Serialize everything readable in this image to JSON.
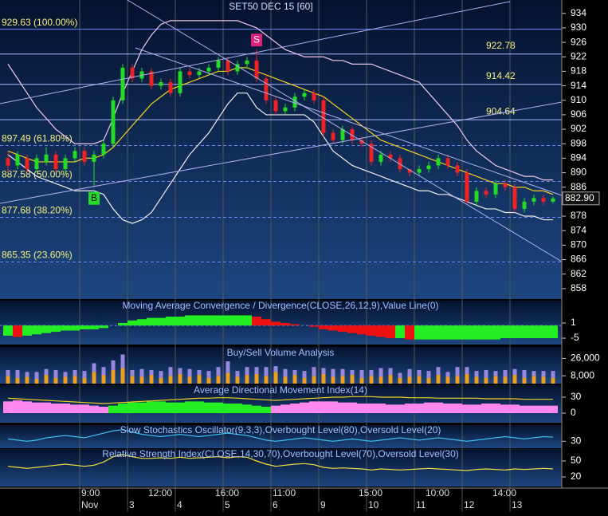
{
  "chart_data": [
    {
      "type": "candlestick",
      "title": "SET50 DEC 15   [60]",
      "categories": [
        null,
        null,
        null,
        null,
        null,
        null,
        null,
        null,
        "9:00",
        null,
        null,
        null,
        null,
        null,
        null,
        "12:00",
        null,
        null,
        null,
        null,
        null,
        null,
        "16:00",
        null,
        null,
        null,
        null,
        null,
        "11:00",
        null,
        null,
        null,
        null,
        null,
        null,
        null,
        null,
        "15:00",
        null,
        null,
        null,
        null,
        null,
        null,
        "10:00",
        null,
        null,
        null,
        null,
        null,
        null,
        "14:00",
        null,
        null,
        null,
        null,
        null,
        null
      ],
      "dates": [
        null,
        null,
        null,
        null,
        null,
        null,
        null,
        null,
        "Nov",
        null,
        null,
        null,
        null,
        "3",
        null,
        null,
        null,
        null,
        "4",
        null,
        null,
        null,
        null,
        "5",
        null,
        null,
        null,
        null,
        "6",
        null,
        null,
        null,
        null,
        "9",
        null,
        null,
        null,
        null,
        "10",
        null,
        null,
        null,
        null,
        "11",
        null,
        null,
        null,
        null,
        "12",
        null,
        null,
        null,
        null,
        "13",
        null,
        null,
        null,
        null
      ],
      "open": [
        894,
        892,
        894,
        891,
        893,
        895,
        891,
        894,
        896,
        893,
        895,
        898,
        910,
        919,
        916,
        918,
        914,
        915,
        912,
        918,
        917,
        918,
        919,
        921,
        918,
        920,
        921,
        916,
        910,
        907,
        908,
        911,
        912,
        910,
        901,
        899,
        902,
        899,
        898,
        893,
        895,
        894,
        891,
        890,
        891,
        892,
        894,
        892,
        890,
        882,
        885,
        884,
        887,
        886,
        880,
        882,
        883,
        882
      ],
      "high": [
        896,
        896,
        895,
        895,
        897,
        896,
        895,
        897,
        897,
        896,
        899,
        911,
        920,
        920,
        919,
        919,
        916,
        916,
        919,
        919,
        919,
        920,
        922,
        922,
        921,
        922,
        924,
        917,
        911,
        909,
        912,
        913,
        913,
        911,
        902,
        903,
        903,
        900,
        899,
        896,
        896,
        895,
        891,
        892,
        893,
        895,
        895,
        893,
        891,
        886,
        886,
        888,
        888,
        887,
        883,
        884,
        884,
        883.5
      ],
      "low": [
        890,
        891,
        890,
        890,
        892,
        890,
        890,
        893,
        892,
        886,
        894,
        897,
        909,
        915,
        915,
        913,
        913,
        911,
        911,
        916,
        916,
        917,
        918,
        917,
        917,
        919,
        915,
        909,
        906,
        906,
        907,
        910,
        909,
        900,
        898,
        898,
        898,
        897,
        892,
        892,
        893,
        890,
        889,
        889,
        890,
        891,
        891,
        889,
        881,
        881,
        883,
        883,
        885,
        879,
        879,
        881,
        881,
        881.5
      ],
      "close": [
        892,
        895,
        891,
        894,
        895,
        891,
        894,
        896,
        893,
        895,
        898,
        910,
        919,
        916,
        918,
        914,
        915,
        912,
        918,
        917,
        918,
        919,
        921,
        918,
        920,
        921,
        916,
        910,
        907,
        908,
        911,
        912,
        910,
        901,
        899,
        902,
        899,
        898,
        893,
        895,
        894,
        891,
        890,
        891,
        892,
        894,
        892,
        890,
        882,
        885,
        884,
        887,
        886,
        880,
        882,
        883,
        882,
        882.9
      ],
      "signals": [
        null,
        null,
        null,
        null,
        null,
        null,
        null,
        null,
        null,
        "B",
        null,
        null,
        null,
        null,
        null,
        null,
        null,
        null,
        null,
        null,
        null,
        null,
        null,
        null,
        null,
        null,
        "S",
        null,
        null,
        null,
        null,
        null,
        null,
        null,
        null,
        null,
        null,
        null,
        null,
        null,
        null,
        null,
        null,
        null,
        null,
        null,
        null,
        null,
        null,
        null,
        null,
        null,
        null,
        null,
        null,
        null,
        null,
        null
      ],
      "up_color": "#22dd22",
      "down_color": "#ee2222",
      "overlays": [
        {
          "color": "#f0c8e8",
          "values": [
            920,
            916,
            912,
            908,
            905,
            902,
            900,
            898,
            898,
            898,
            899,
            905,
            912,
            918,
            924,
            928,
            931,
            932,
            932,
            932,
            932,
            932,
            932,
            932,
            932,
            931,
            930,
            928,
            926,
            924,
            923,
            922,
            922,
            922,
            921,
            921,
            920,
            920,
            920,
            919,
            918,
            917,
            916,
            915,
            912,
            909,
            906,
            903,
            899,
            896,
            894,
            892,
            891,
            890,
            889,
            889,
            888,
            888
          ]
        },
        {
          "color": "#f0f0f0",
          "values": [
            895,
            893,
            891,
            889,
            888,
            887,
            886,
            885,
            885,
            885,
            884,
            880,
            877,
            876,
            877,
            879,
            883,
            887,
            891,
            895,
            898,
            901,
            905,
            909,
            912,
            912,
            908,
            906,
            906,
            906,
            906,
            906,
            904,
            900,
            896,
            894,
            892,
            891,
            890,
            889,
            888,
            887,
            886,
            885,
            885,
            884,
            884,
            883,
            882,
            881,
            880,
            880,
            879,
            879,
            878,
            878,
            877,
            877
          ]
        },
        {
          "color": "#f5d020",
          "values": [
            896,
            895,
            894,
            893,
            893,
            893,
            893,
            893,
            894,
            894,
            895,
            897,
            900,
            903,
            906,
            909,
            911,
            913,
            914,
            915,
            916,
            917,
            918,
            918,
            919,
            919,
            918,
            917,
            916,
            915,
            914,
            913,
            912,
            911,
            909,
            907,
            905,
            903,
            901,
            899,
            898,
            897,
            896,
            895,
            894,
            893,
            892,
            891,
            890,
            889,
            888,
            887,
            887,
            886,
            886,
            885,
            885,
            884
          ]
        }
      ],
      "levels": [
        {
          "value": 929.63,
          "label": "929.63 (100.00%)"
        },
        {
          "value": 897.49,
          "label": "897.49 (61.80%)"
        },
        {
          "value": 887.58,
          "label": "887.58 (50.00%)"
        },
        {
          "value": 877.68,
          "label": "877.68 (38.20%)"
        },
        {
          "value": 865.35,
          "label": "865.35 (23.60%)"
        }
      ],
      "price_lines": [
        922.78,
        914.42,
        904.64
      ],
      "last": {
        "value": 882.9,
        "label": "882.90"
      },
      "ylim": [
        855.1,
        937.7
      ],
      "yticks": [
        934,
        930,
        926,
        922,
        918,
        914,
        910,
        906,
        902,
        898,
        894,
        890,
        886,
        878,
        874,
        870,
        866,
        862,
        858
      ]
    },
    {
      "type": "bar",
      "title": "Moving Average Convergence / Divergence(CLOSE,26,12,9),Value Line(0)",
      "values": [
        -4,
        -4.5,
        -4,
        -3.5,
        -3,
        -2.5,
        -2,
        -2,
        -1.5,
        -1.5,
        -1,
        0,
        1,
        2,
        2.5,
        3,
        3,
        3.5,
        3.5,
        4,
        4,
        4,
        4,
        4,
        4,
        4,
        3.5,
        2.5,
        1.5,
        1,
        0.5,
        0,
        -0.5,
        -1.5,
        -2,
        -2.5,
        -3,
        -3.5,
        -4,
        -4.5,
        -5,
        -5,
        -5.5,
        -5.5,
        -5.5,
        -5.5,
        -5.5,
        -5.5,
        -5.5,
        -5.5,
        -5.5,
        -5.5,
        -5,
        -5,
        -5,
        -5,
        -5,
        -5
      ],
      "up_color": "#22ee22",
      "down_color": "#ee1111",
      "ylim": [
        -7.5,
        9.8
      ],
      "yticks": [
        1,
        -5
      ]
    },
    {
      "type": "stacked-bar",
      "title": "Buy/Sell Volume Analysis",
      "series": [
        {
          "color": "#f0a020",
          "values": [
            8000,
            6000,
            7000,
            5000,
            9000,
            6000,
            7000,
            8000,
            6000,
            12000,
            9000,
            14000,
            16000,
            8000,
            7000,
            9000,
            6000,
            8000,
            10000,
            7000,
            9000,
            6000,
            8000,
            11000,
            7000,
            9000,
            10000,
            8000,
            12000,
            7000,
            9000,
            6000,
            8000,
            10000,
            7000,
            8000,
            9000,
            6000,
            8000,
            7000,
            9000,
            6000,
            7000,
            8000,
            6000,
            9000,
            7000,
            8000,
            10000,
            7000,
            6000,
            8000,
            7000,
            9000,
            6000,
            8000,
            7000,
            6000
          ]
        },
        {
          "color": "#9a88e0",
          "values": [
            6000,
            8000,
            5000,
            7000,
            6000,
            8000,
            5000,
            6000,
            7000,
            9000,
            8000,
            10000,
            14000,
            6000,
            8000,
            5000,
            7000,
            9000,
            6000,
            8000,
            5000,
            7000,
            9000,
            12000,
            6000,
            8000,
            7000,
            9000,
            6000,
            8000,
            5000,
            7000,
            9000,
            6000,
            8000,
            7000,
            5000,
            8000,
            6000,
            9000,
            7000,
            5000,
            8000,
            6000,
            7000,
            8000,
            5000,
            9000,
            7000,
            6000,
            8000,
            5000,
            7000,
            6000,
            8000,
            5000,
            6000,
            7000
          ]
        }
      ],
      "ylim": [
        0,
        37000
      ],
      "yticks": [
        {
          "value": 26000,
          "label": "26,000"
        },
        {
          "value": 8000,
          "label": "8,000"
        }
      ]
    },
    {
      "type": "bar-line",
      "title": "Average Directional Movement Index(14)",
      "series": [
        {
          "color": "#ff88ee",
          "values": [
            22,
            24,
            22,
            20,
            20,
            18,
            18,
            16,
            16,
            14,
            12,
            null,
            null,
            null,
            null,
            null,
            null,
            null,
            null,
            null,
            null,
            null,
            null,
            null,
            null,
            null,
            null,
            null,
            14,
            16,
            18,
            20,
            22,
            22,
            22,
            20,
            20,
            18,
            18,
            18,
            16,
            16,
            18,
            18,
            20,
            20,
            18,
            18,
            16,
            16,
            18,
            18,
            16,
            16,
            14,
            14,
            14,
            14
          ]
        },
        {
          "color": "#22ee22",
          "values": [
            null,
            null,
            null,
            null,
            null,
            null,
            null,
            null,
            null,
            null,
            null,
            14,
            18,
            20,
            20,
            22,
            22,
            20,
            20,
            22,
            22,
            20,
            20,
            18,
            18,
            16,
            14,
            12,
            null,
            null,
            null,
            null,
            null,
            null,
            null,
            null,
            null,
            null,
            null,
            null,
            null,
            null,
            null,
            null,
            null,
            null,
            null,
            null,
            null,
            null,
            null,
            null,
            null,
            null,
            null,
            null,
            null,
            null
          ]
        }
      ],
      "line": {
        "color": "#f5d020",
        "values": [
          28,
          27,
          26,
          25,
          24,
          23,
          22,
          21,
          20,
          19,
          18,
          19,
          20,
          21,
          22,
          23,
          24,
          25,
          26,
          27,
          28,
          28,
          29,
          29,
          28,
          27,
          26,
          25,
          24,
          25,
          26,
          27,
          28,
          29,
          30,
          30,
          31,
          31,
          31,
          30,
          30,
          30,
          29,
          29,
          29,
          28,
          28,
          28,
          28,
          28,
          27,
          27,
          27,
          27,
          26,
          26,
          26,
          26
        ]
      },
      "ylim": [
        -18,
        52.5
      ],
      "yticks": [
        30,
        0
      ]
    },
    {
      "type": "line",
      "title": "Slow Stochastics Oscillator(9,3,3),Overbought Level(80),Oversold Level(20)",
      "series": [
        {
          "color": "#40c0f0",
          "values": [
            40,
            35,
            30,
            35,
            45,
            50,
            55,
            50,
            45,
            55,
            65,
            75,
            80,
            70,
            60,
            55,
            50,
            55,
            60,
            55,
            50,
            55,
            60,
            65,
            60,
            55,
            45,
            35,
            30,
            35,
            40,
            45,
            40,
            35,
            30,
            35,
            40,
            35,
            30,
            35,
            40,
            45,
            40,
            35,
            40,
            45,
            40,
            35,
            30,
            35,
            40,
            45,
            50,
            45,
            40,
            45,
            50,
            48
          ]
        }
      ],
      "ylim": [
        0,
        100
      ],
      "yticks": [
        30
      ]
    },
    {
      "type": "line",
      "title": "Relative Strength Index(CLOSE,14,30,70),Overbought Level(70),Oversold Level(30)",
      "series": [
        {
          "color": "#f5e040",
          "values": [
            40,
            38,
            36,
            38,
            40,
            42,
            44,
            42,
            40,
            42,
            48,
            58,
            62,
            58,
            55,
            55,
            56,
            55,
            57,
            55,
            56,
            57,
            58,
            56,
            58,
            57,
            50,
            44,
            40,
            42,
            44,
            45,
            43,
            38,
            36,
            37,
            36,
            35,
            33,
            35,
            34,
            33,
            34,
            35,
            36,
            35,
            34,
            33,
            32,
            34,
            35,
            34,
            33,
            35,
            34,
            35,
            36,
            35
          ]
        }
      ],
      "ylim": [
        2,
        72.5
      ],
      "yticks": [
        50,
        20
      ]
    }
  ]
}
